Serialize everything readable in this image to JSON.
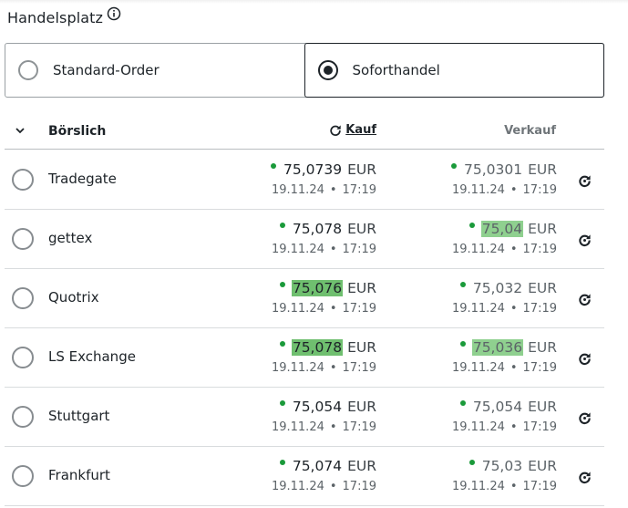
{
  "header": {
    "title": "Handelsplatz",
    "info_icon": "info-icon"
  },
  "order_types": [
    {
      "label": "Standard-Order",
      "selected": false
    },
    {
      "label": "Soforthandel",
      "selected": true
    }
  ],
  "table": {
    "column_venue": "Börslich",
    "column_buy": "Kauf",
    "column_sell": "Verkauf",
    "rows": [
      {
        "venue": "Tradegate",
        "buy": {
          "value": "75,0739",
          "currency": "EUR",
          "date": "19.11.24",
          "time": "17:19",
          "highlight": false
        },
        "sell": {
          "value": "75,0301",
          "currency": "EUR",
          "date": "19.11.24",
          "time": "17:19",
          "highlight": false
        }
      },
      {
        "venue": "gettex",
        "buy": {
          "value": "75,078",
          "currency": "EUR",
          "date": "19.11.24",
          "time": "17:19",
          "highlight": false
        },
        "sell": {
          "value": "75,04",
          "currency": "EUR",
          "date": "19.11.24",
          "time": "17:19",
          "highlight": true
        }
      },
      {
        "venue": "Quotrix",
        "buy": {
          "value": "75,076",
          "currency": "EUR",
          "date": "19.11.24",
          "time": "17:19",
          "highlight": true
        },
        "sell": {
          "value": "75,032",
          "currency": "EUR",
          "date": "19.11.24",
          "time": "17:19",
          "highlight": false
        }
      },
      {
        "venue": "LS Exchange",
        "buy": {
          "value": "75,078",
          "currency": "EUR",
          "date": "19.11.24",
          "time": "17:19",
          "highlight": true
        },
        "sell": {
          "value": "75,036",
          "currency": "EUR",
          "date": "19.11.24",
          "time": "17:19",
          "highlight": true
        }
      },
      {
        "venue": "Stuttgart",
        "buy": {
          "value": "75,054",
          "currency": "EUR",
          "date": "19.11.24",
          "time": "17:19",
          "highlight": false
        },
        "sell": {
          "value": "75,054",
          "currency": "EUR",
          "date": "19.11.24",
          "time": "17:19",
          "highlight": false
        }
      },
      {
        "venue": "Frankfurt",
        "buy": {
          "value": "75,074",
          "currency": "EUR",
          "date": "19.11.24",
          "time": "17:19",
          "highlight": false
        },
        "sell": {
          "value": "75,03",
          "currency": "EUR",
          "date": "19.11.24",
          "time": "17:19",
          "highlight": false
        }
      }
    ]
  },
  "colors": {
    "status_dot": "#1a9a3a",
    "highlight_buy": "#6fbf6f",
    "highlight_sell": "#8fd08f",
    "text": "#1d2328"
  }
}
